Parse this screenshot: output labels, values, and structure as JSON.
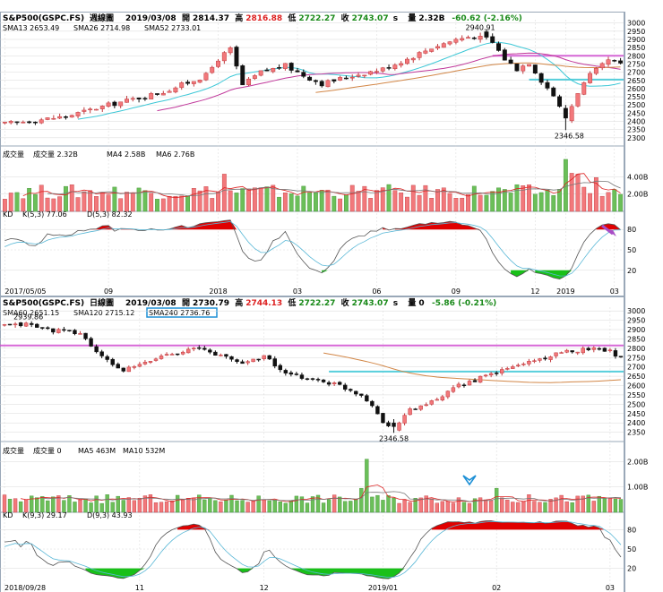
{
  "colors": {
    "up": "#f2787b",
    "down": "#111111",
    "vol_up": "#f2787b",
    "vol_down": "#6bbf59",
    "kd_k": "#555555",
    "kd_d": "#58b7d6",
    "pink": "#d14fd1",
    "cyan": "#3cc7d6",
    "grid": "#d8d8d8",
    "frame": "#9aa8b8",
    "orange": "#d28646",
    "teal": "#2f8fa0",
    "arrow": "#a84cc6"
  },
  "chart_data": [
    {
      "type": "candlestick",
      "name": "weekly",
      "header": {
        "symbol": "S&P500(GSPC.FS)",
        "period": "週線圖",
        "date": "2019/03/08",
        "open_label": "開",
        "open": "2814.37",
        "high_label": "高",
        "high": "2816.88",
        "low_label": "低",
        "low": "2722.27",
        "close_label": "收",
        "close": "2743.07",
        "close_suffix": "s",
        "vol_label": "量",
        "vol": "2.32B",
        "change": "-60.62 (-2.16%)"
      },
      "ma_legend": [
        {
          "label": "SMA13 2653.49",
          "color": "#3cc7d6"
        },
        {
          "label": "SMA26 2714.98",
          "color": "#c0379a"
        },
        {
          "label": "SMA52 2733.01",
          "color": "#d28646"
        }
      ],
      "ylim": [
        2250,
        3020
      ],
      "yticks": [
        3000,
        2950,
        2900,
        2850,
        2800,
        2750,
        2700,
        2650,
        2600,
        2550,
        2500,
        2450,
        2400,
        2350,
        2300
      ],
      "annotations": [
        {
          "text": "2940.91"
        },
        {
          "text": "2346.58"
        }
      ],
      "volume": {
        "legend": [
          {
            "label": "成交量",
            "color": "#000"
          },
          {
            "label": "成交量 2.32B",
            "color": "#000"
          },
          {
            "label": "MA4 2.58B",
            "color": "#d22"
          },
          {
            "label": "MA6 2.76B",
            "color": "#2a7fc0"
          }
        ],
        "yticks": [
          {
            "v": 4,
            "t": "4.00B"
          },
          {
            "v": 2,
            "t": "2.00B"
          }
        ]
      },
      "kd": {
        "legend": [
          {
            "label": "KD",
            "color": "#000"
          },
          {
            "label": "K(5,3) 77.06",
            "color": "#d22"
          },
          {
            "label": "D(5,3) 82.32",
            "color": "#3cc7d6"
          }
        ],
        "yticks": [
          80,
          50,
          20
        ]
      },
      "xticks": [
        {
          "i": 0,
          "t": "2017/05/05"
        },
        {
          "i": 17,
          "t": "09"
        },
        {
          "i": 35,
          "t": "2018"
        },
        {
          "i": 48,
          "t": "03"
        },
        {
          "i": 61,
          "t": "06"
        },
        {
          "i": 74,
          "t": "09"
        },
        {
          "i": 87,
          "t": "12"
        },
        {
          "i": 92,
          "t": "2019"
        },
        {
          "i": 100,
          "t": "03"
        }
      ],
      "ohlc": []
    },
    {
      "type": "candlestick",
      "name": "daily",
      "header": {
        "symbol": "S&P500(GSPC.FS)",
        "period": "日線圖",
        "date": "2019/03/08",
        "open_label": "開",
        "open": "2730.79",
        "high_label": "高",
        "high": "2744.13",
        "low_label": "低",
        "low": "2722.27",
        "close_label": "收",
        "close": "2743.07",
        "close_suffix": "s",
        "vol_label": "量",
        "vol": "0",
        "change": "-5.86 (-0.21%)"
      },
      "ma_legend": [
        {
          "label": "SMA60 2651.15",
          "color": "#d28646"
        },
        {
          "label": "SMA120 2715.12",
          "color": "#888"
        },
        {
          "label": "SMA240 2736.76",
          "color": "#2a7fc0"
        }
      ],
      "ylim": [
        2300,
        3020
      ],
      "yticks": [
        3000,
        2950,
        2900,
        2850,
        2800,
        2750,
        2700,
        2650,
        2600,
        2550,
        2500,
        2450,
        2400,
        2350
      ],
      "annotations": [
        {
          "text": "2939.86"
        },
        {
          "text": "2346.58"
        }
      ],
      "volume": {
        "legend": [
          {
            "label": "成交量",
            "color": "#000"
          },
          {
            "label": "成交量 0",
            "color": "#000"
          },
          {
            "label": "MA5 463M",
            "color": "#d22"
          },
          {
            "label": "MA10 532M",
            "color": "#2a7fc0"
          }
        ],
        "yticks": [
          {
            "v": 2,
            "t": "2.00B"
          },
          {
            "v": 1,
            "t": "1.00B"
          }
        ]
      },
      "kd": {
        "legend": [
          {
            "label": "KD",
            "color": "#000"
          },
          {
            "label": "K(9,3) 29.17",
            "color": "#d22"
          },
          {
            "label": "D(9,3) 43.93",
            "color": "#3cc7d6"
          }
        ],
        "yticks": [
          80,
          50,
          20
        ]
      },
      "xticks": [
        {
          "i": 0,
          "t": "2018/09/28"
        },
        {
          "i": 25,
          "t": "11"
        },
        {
          "i": 48,
          "t": "12"
        },
        {
          "i": 70,
          "t": "2019/01"
        },
        {
          "i": 91,
          "t": "02"
        },
        {
          "i": 112,
          "t": "03"
        }
      ],
      "ohlc": []
    }
  ]
}
